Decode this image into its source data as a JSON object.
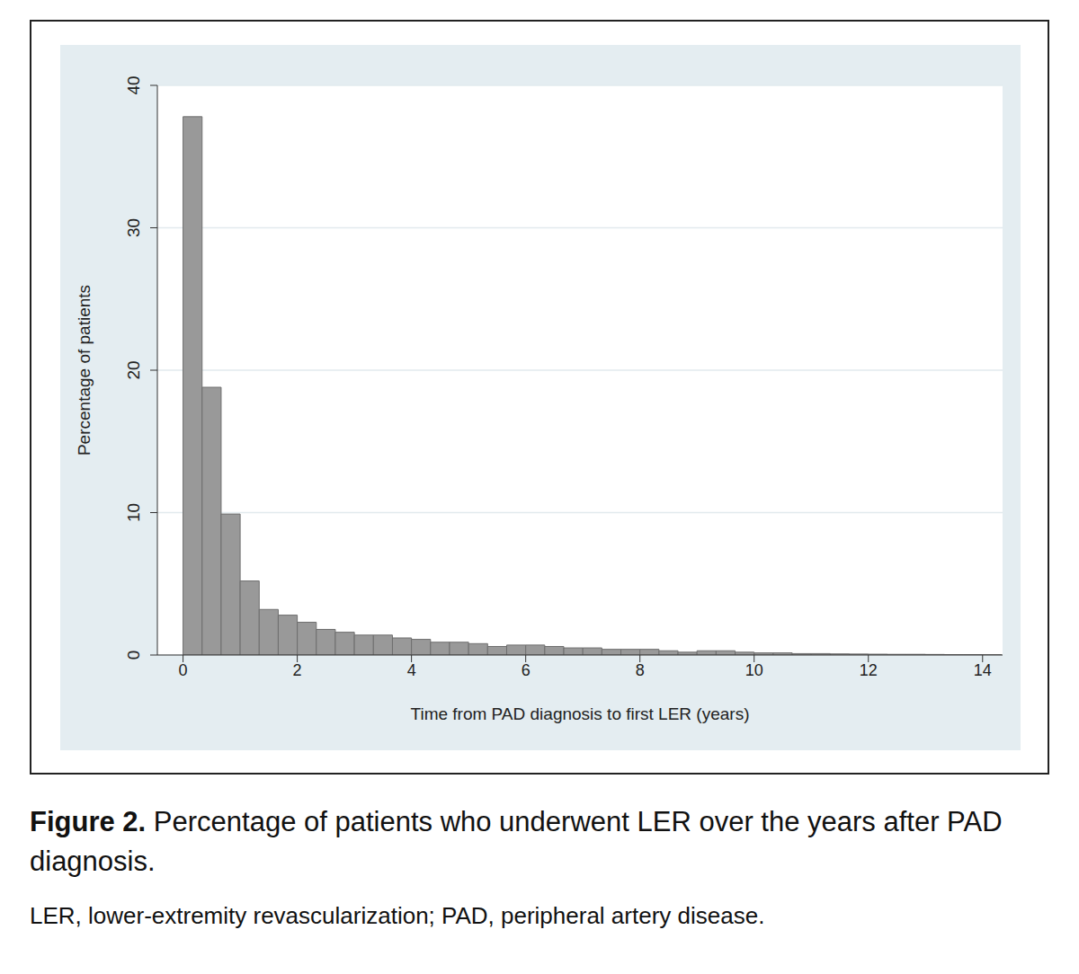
{
  "chart_data": {
    "type": "histogram",
    "title": "Figure 2. Percentage of patients who underwent LER over the years after PAD diagnosis.",
    "subtitle": "LER, lower-extremity revascularization; PAD, peripheral artery disease.",
    "x_label": "Time from PAD diagnosis to first LER (years)",
    "y_label": "Percentage of patients",
    "bins": [
      0,
      0.3333,
      0.6667,
      1,
      1.3333,
      1.6667,
      2,
      2.3333,
      2.6667,
      3,
      3.3333,
      3.6667,
      4,
      4.3333,
      4.6667,
      5,
      5.3333,
      5.6667,
      6,
      6.3333,
      6.6667,
      7,
      7.3333,
      7.6667,
      8,
      8.3333,
      8.6667,
      9,
      9.3333,
      9.6667,
      10,
      10.3333,
      10.6667,
      11,
      11.3333,
      11.6667,
      12,
      12.3333,
      12.6667,
      13,
      13.3333,
      13.6667,
      14,
      14.3333
    ],
    "values": [
      37.8,
      18.8,
      9.9,
      5.2,
      3.2,
      2.8,
      2.3,
      1.8,
      1.6,
      1.4,
      1.4,
      1.2,
      1.1,
      0.9,
      0.9,
      0.8,
      0.6,
      0.7,
      0.7,
      0.6,
      0.5,
      0.5,
      0.4,
      0.4,
      0.4,
      0.3,
      0.2,
      0.3,
      0.3,
      0.2,
      0.15,
      0.15,
      0.1,
      0.1,
      0.08,
      0.07,
      0.06,
      0.05,
      0.05,
      0.04,
      0.03,
      0.03,
      0.02
    ],
    "color": "#999999",
    "xlim": [
      -0.45,
      14.35
    ],
    "xticks": [
      0,
      2,
      4,
      6,
      8,
      10,
      12,
      14
    ],
    "ylim": [
      0,
      40
    ],
    "yticks": [
      0,
      10,
      20,
      30,
      40
    ],
    "grid": true
  }
}
